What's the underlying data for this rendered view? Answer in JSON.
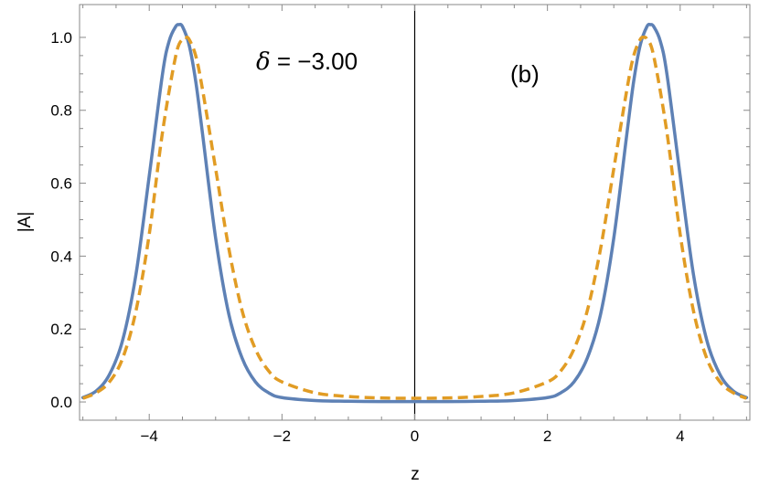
{
  "chart_data": {
    "type": "line",
    "title": "",
    "xlabel": "z",
    "ylabel": "|A|",
    "xlim": [
      -5.05,
      5.05
    ],
    "ylim": [
      -0.05,
      1.09
    ],
    "xticks": [
      -4,
      -2,
      0,
      2,
      4
    ],
    "xtick_labels": [
      "−4",
      "−2",
      "0",
      "2",
      "4"
    ],
    "yticks": [
      0.0,
      0.2,
      0.4,
      0.6,
      0.8,
      1.0
    ],
    "ytick_labels": [
      "0.0",
      "0.2",
      "0.4",
      "0.6",
      "0.8",
      "1.0"
    ],
    "grid": false,
    "legend": "none",
    "annotations": {
      "delta_symbol": "δ",
      "delta_text": " = −3.00",
      "panel_label": "(b)"
    },
    "series": [
      {
        "style": "solid",
        "color": "#5E81B5",
        "x": [
          -5.0,
          -4.8,
          -4.6,
          -4.4,
          -4.2,
          -4.0,
          -3.8,
          -3.7,
          -3.6,
          -3.55,
          -3.5,
          -3.4,
          -3.3,
          -3.2,
          -3.0,
          -2.8,
          -2.6,
          -2.4,
          -2.2,
          -2.0,
          -1.5,
          -1.0,
          -0.5,
          0.0,
          0.5,
          1.0,
          1.5,
          2.0,
          2.2,
          2.4,
          2.6,
          2.8,
          3.0,
          3.2,
          3.3,
          3.4,
          3.5,
          3.55,
          3.6,
          3.7,
          3.8,
          4.0,
          4.2,
          4.4,
          4.6,
          4.8,
          5.0
        ],
        "y": [
          0.012,
          0.03,
          0.075,
          0.17,
          0.35,
          0.62,
          0.9,
          0.99,
          1.03,
          1.035,
          1.03,
          0.98,
          0.88,
          0.74,
          0.45,
          0.24,
          0.12,
          0.055,
          0.025,
          0.012,
          0.004,
          0.002,
          0.001,
          0.001,
          0.001,
          0.002,
          0.004,
          0.012,
          0.025,
          0.055,
          0.12,
          0.24,
          0.45,
          0.74,
          0.88,
          0.98,
          1.03,
          1.035,
          1.03,
          0.99,
          0.9,
          0.62,
          0.35,
          0.17,
          0.075,
          0.03,
          0.012
        ]
      },
      {
        "style": "dashed",
        "color": "#E19C24",
        "x": [
          -5.0,
          -4.8,
          -4.6,
          -4.4,
          -4.2,
          -4.0,
          -3.8,
          -3.6,
          -3.5,
          -3.45,
          -3.4,
          -3.3,
          -3.2,
          -3.0,
          -2.8,
          -2.6,
          -2.4,
          -2.2,
          -2.0,
          -1.5,
          -1.0,
          -0.5,
          0.0,
          0.5,
          1.0,
          1.5,
          2.0,
          2.2,
          2.4,
          2.6,
          2.8,
          3.0,
          3.2,
          3.3,
          3.4,
          3.45,
          3.5,
          3.6,
          3.8,
          4.0,
          4.2,
          4.4,
          4.6,
          4.8,
          5.0
        ],
        "y": [
          0.01,
          0.025,
          0.055,
          0.12,
          0.25,
          0.46,
          0.74,
          0.95,
          0.995,
          1.0,
          0.995,
          0.95,
          0.86,
          0.64,
          0.42,
          0.25,
          0.145,
          0.085,
          0.055,
          0.025,
          0.015,
          0.011,
          0.01,
          0.011,
          0.015,
          0.025,
          0.055,
          0.085,
          0.145,
          0.25,
          0.42,
          0.64,
          0.86,
          0.95,
          0.995,
          1.0,
          0.995,
          0.95,
          0.74,
          0.46,
          0.25,
          0.12,
          0.055,
          0.025,
          0.01
        ]
      }
    ]
  }
}
